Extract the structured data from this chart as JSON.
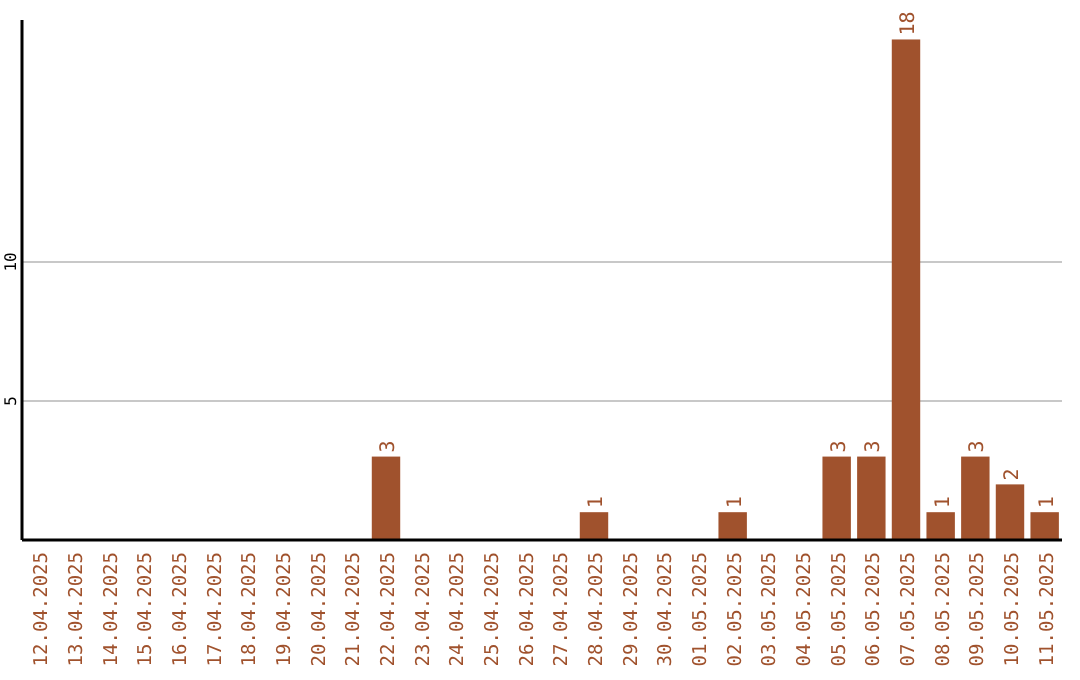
{
  "chart_data": {
    "type": "bar",
    "categories": [
      "12.04.2025",
      "13.04.2025",
      "14.04.2025",
      "15.04.2025",
      "16.04.2025",
      "17.04.2025",
      "18.04.2025",
      "19.04.2025",
      "20.04.2025",
      "21.04.2025",
      "22.04.2025",
      "23.04.2025",
      "24.04.2025",
      "25.04.2025",
      "26.04.2025",
      "27.04.2025",
      "28.04.2025",
      "29.04.2025",
      "30.04.2025",
      "01.05.2025",
      "02.05.2025",
      "03.05.2025",
      "04.05.2025",
      "05.05.2025",
      "06.05.2025",
      "07.05.2025",
      "08.05.2025",
      "09.05.2025",
      "10.05.2025",
      "11.05.2025"
    ],
    "values": [
      0,
      0,
      0,
      0,
      0,
      0,
      0,
      0,
      0,
      0,
      3,
      0,
      0,
      0,
      0,
      0,
      1,
      0,
      0,
      0,
      1,
      0,
      0,
      3,
      3,
      18,
      1,
      3,
      2,
      1
    ],
    "value_labels": [
      null,
      null,
      null,
      null,
      null,
      null,
      null,
      null,
      null,
      null,
      "3",
      null,
      null,
      null,
      null,
      null,
      "1",
      null,
      null,
      null,
      "1",
      null,
      null,
      "3",
      "3",
      "18",
      "1",
      "3",
      "2",
      "1"
    ],
    "color": "#a0522d",
    "ylim": [
      0,
      18.7
    ],
    "yticks": [
      5,
      10
    ],
    "grid": "y"
  }
}
